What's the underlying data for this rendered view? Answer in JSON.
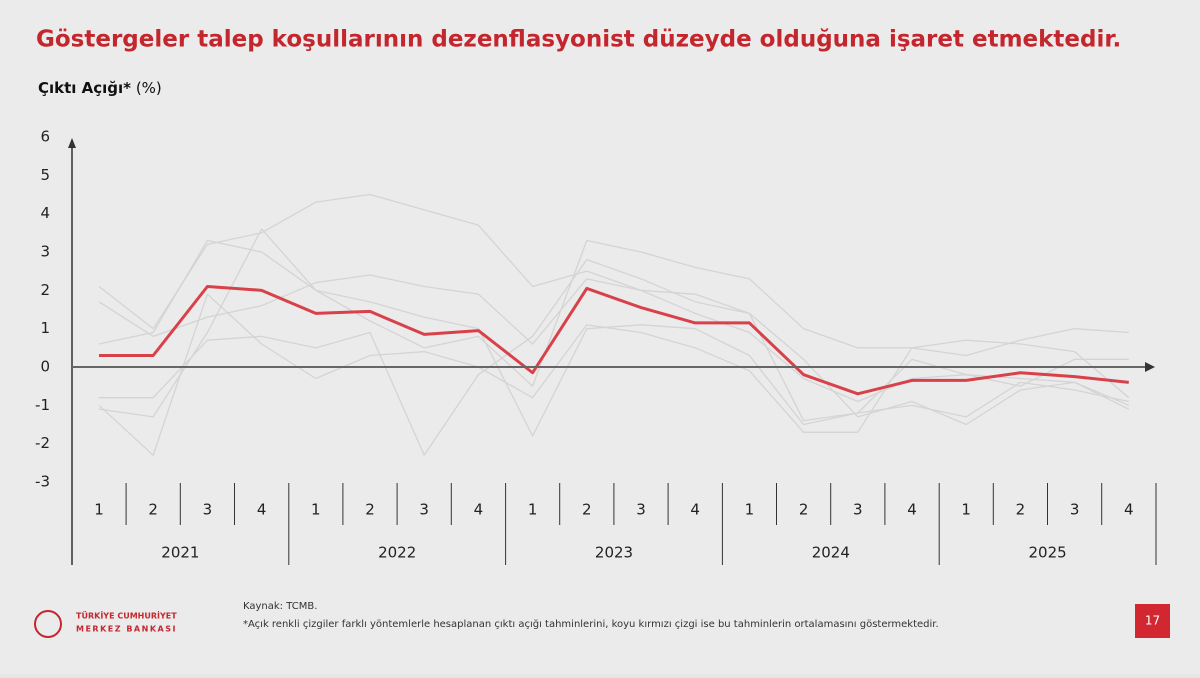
{
  "chart_data": {
    "type": "line",
    "title": "Göstergeler talep koşullarının dezenflasyonist düzeyde olduğuna işaret etmektedir.",
    "y_label": "Çıktı Açığı*",
    "y_unit": "(%)",
    "categories": [
      "1",
      "2",
      "3",
      "4",
      "1",
      "2",
      "3",
      "4",
      "1",
      "2",
      "3",
      "4",
      "1",
      "2",
      "3",
      "4",
      "1",
      "2",
      "3",
      "4"
    ],
    "year_groups": [
      "2021",
      "2022",
      "2023",
      "2024",
      "2025"
    ],
    "ylim": [
      -3,
      6
    ],
    "yticks": [
      -3,
      -2,
      -1,
      0,
      1,
      2,
      3,
      4,
      5,
      6
    ],
    "series": [
      {
        "color": "#d4d4d4",
        "values": [
          0.6,
          0.9,
          3.3,
          3.0,
          2.0,
          1.2,
          0.5,
          0.8,
          -0.5,
          3.3,
          3.0,
          2.6,
          2.3,
          1.0,
          0.5,
          0.5,
          0.3,
          0.7,
          1.0,
          0.9
        ]
      },
      {
        "color": "#d4d4d4",
        "values": [
          2.1,
          1.0,
          3.2,
          3.5,
          4.3,
          4.5,
          4.1,
          3.7,
          2.1,
          2.5,
          2.0,
          1.9,
          1.4,
          0.2,
          -1.3,
          -0.9,
          -1.5,
          -0.6,
          -0.4,
          -1.0
        ]
      },
      {
        "color": "#d4d4d4",
        "values": [
          -1.0,
          -2.3,
          1.9,
          0.6,
          -0.3,
          0.3,
          0.4,
          0.0,
          -0.8,
          1.1,
          0.9,
          0.5,
          -0.1,
          -1.7,
          -1.7,
          0.5,
          0.7,
          0.6,
          0.4,
          -0.8
        ]
      },
      {
        "color": "#d4d4d4",
        "values": [
          -0.8,
          -0.8,
          0.7,
          0.8,
          0.5,
          0.9,
          -2.3,
          -0.2,
          0.8,
          2.8,
          2.3,
          1.7,
          1.4,
          -1.4,
          -1.2,
          -1.0,
          -1.3,
          -0.4,
          -0.6,
          -0.9
        ]
      },
      {
        "color": "#d4d4d4",
        "values": [
          1.7,
          0.8,
          1.3,
          1.6,
          2.2,
          2.4,
          2.1,
          1.9,
          0.6,
          2.3,
          2.0,
          1.4,
          0.9,
          -0.3,
          -0.9,
          -0.3,
          -0.2,
          -0.5,
          0.2,
          0.2
        ]
      },
      {
        "color": "#d4d4d4",
        "values": [
          -1.1,
          -1.3,
          0.9,
          3.6,
          2.0,
          1.7,
          1.3,
          1.0,
          -1.8,
          1.0,
          1.1,
          1.0,
          0.3,
          -1.5,
          -1.2,
          0.2,
          -0.2,
          -0.3,
          -0.4,
          -1.1
        ]
      },
      {
        "color": "#d9414a",
        "values": [
          0.3,
          0.3,
          2.1,
          2.0,
          1.4,
          1.45,
          0.85,
          0.95,
          -0.15,
          2.05,
          1.55,
          1.15,
          1.15,
          -0.2,
          -0.7,
          -0.35,
          -0.35,
          -0.15,
          -0.25,
          -0.4
        ]
      }
    ]
  },
  "footer": {
    "source": "Kaynak: TCMB.",
    "note": "*Açık renkli çizgiler farklı yöntemlerle hesaplanan çıktı açığı tahminlerini, koyu kırmızı çizgi ise bu tahminlerin ortalamasını göstermektedir.",
    "logo_line1": "TÜRKİYE CUMHURİYET",
    "logo_line2": "MERKEZ BANKASI",
    "page_number": "17"
  }
}
